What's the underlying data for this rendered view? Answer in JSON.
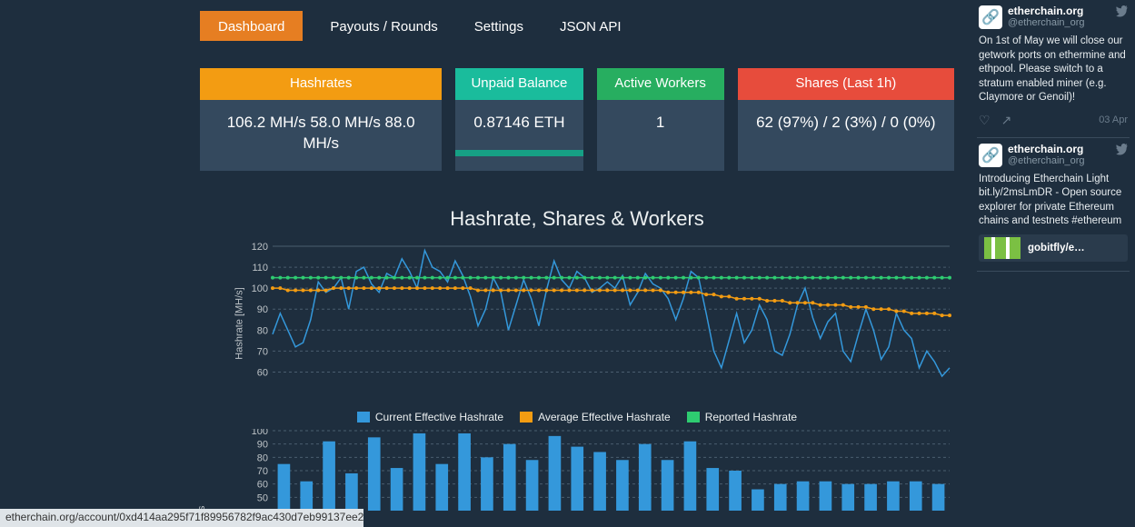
{
  "nav": {
    "tabs": [
      "Dashboard",
      "Payouts / Rounds",
      "Settings",
      "JSON API"
    ],
    "active_index": 0,
    "active_bg": "#e67e22"
  },
  "stats": {
    "hashrates": {
      "title": "Hashrates",
      "value": "106.2 MH/s   58.0 MH/s   88.0 MH/s",
      "header_color": "#f39c12"
    },
    "unpaid": {
      "title": "Unpaid Balance",
      "value": "0.87146 ETH",
      "header_color": "#1abc9c",
      "bottom_bar_color": "#16a085"
    },
    "workers": {
      "title": "Active Workers",
      "value": "1",
      "header_color": "#27ae60"
    },
    "shares": {
      "title": "Shares (Last 1h)",
      "value": "62 (97%) / 2 (3%) / 0 (0%)",
      "header_color": "#e74c3c"
    },
    "body_bg": "#34495e"
  },
  "line_chart": {
    "title": "Hashrate, Shares & Workers",
    "ylabel": "Hashrate [MH/s]",
    "ylim": [
      55,
      120
    ],
    "yticks": [
      60,
      70,
      80,
      90,
      100,
      110,
      120
    ],
    "series": {
      "current": {
        "label": "Current Effective Hashrate",
        "color": "#3498db"
      },
      "average": {
        "label": "Average Effective Hashrate",
        "color": "#f39c12"
      },
      "reported": {
        "label": "Reported Hashrate",
        "color": "#2ecc71"
      }
    },
    "current_values": [
      78,
      88,
      80,
      72,
      74,
      85,
      103,
      98,
      100,
      105,
      90,
      108,
      110,
      102,
      98,
      107,
      105,
      114,
      108,
      100,
      118,
      110,
      108,
      103,
      113,
      106,
      96,
      82,
      90,
      105,
      98,
      80,
      92,
      104,
      95,
      82,
      99,
      113,
      104,
      100,
      108,
      105,
      98,
      100,
      103,
      100,
      106,
      92,
      98,
      107,
      102,
      100,
      95,
      85,
      95,
      108,
      105,
      88,
      70,
      62,
      75,
      88,
      74,
      80,
      92,
      85,
      70,
      68,
      78,
      92,
      100,
      86,
      76,
      84,
      88,
      70,
      65,
      78,
      90,
      80,
      66,
      72,
      88,
      80,
      76,
      62,
      70,
      65,
      58,
      62
    ],
    "average_values": [
      100,
      100,
      99,
      99,
      99,
      99,
      99,
      99,
      100,
      100,
      100,
      100,
      100,
      100,
      100,
      100,
      100,
      100,
      100,
      100,
      100,
      100,
      100,
      100,
      100,
      100,
      100,
      99,
      99,
      99,
      99,
      99,
      99,
      99,
      99,
      99,
      99,
      99,
      99,
      99,
      99,
      99,
      99,
      99,
      99,
      99,
      99,
      99,
      99,
      99,
      99,
      99,
      98,
      98,
      98,
      98,
      98,
      97,
      97,
      96,
      96,
      95,
      95,
      95,
      95,
      94,
      94,
      94,
      93,
      93,
      93,
      93,
      92,
      92,
      92,
      92,
      91,
      91,
      91,
      90,
      90,
      90,
      89,
      89,
      88,
      88,
      88,
      88,
      87,
      87
    ],
    "reported_values": [
      105,
      105,
      105,
      105,
      105,
      105,
      105,
      105,
      105,
      105,
      105,
      105,
      105,
      105,
      105,
      105,
      105,
      105,
      105,
      105,
      105,
      105,
      105,
      105,
      105,
      105,
      105,
      105,
      105,
      105,
      105,
      105,
      105,
      105,
      105,
      105,
      105,
      105,
      105,
      105,
      105,
      105,
      105,
      105,
      105,
      105,
      105,
      105,
      105,
      105,
      105,
      105,
      105,
      105,
      105,
      105,
      105,
      105,
      105,
      105,
      105,
      105,
      105,
      105,
      105,
      105,
      105,
      105,
      105,
      105,
      105,
      105,
      105,
      105,
      105,
      105,
      105,
      105,
      105,
      105,
      105,
      105,
      105,
      105,
      105,
      105,
      105,
      105,
      105,
      105
    ],
    "grid_color": "#4a5d6f"
  },
  "bar_chart": {
    "ylabel": "ares",
    "ylim": [
      40,
      100
    ],
    "yticks": [
      50,
      60,
      70,
      80,
      90,
      100
    ],
    "values": [
      75,
      62,
      92,
      68,
      95,
      72,
      98,
      75,
      98,
      80,
      90,
      78,
      96,
      88,
      84,
      78,
      90,
      78,
      92,
      72,
      70,
      56,
      60,
      62,
      62,
      60,
      60,
      62,
      62,
      60
    ],
    "bar_color": "#3498db",
    "grid_color": "#4a5d6f"
  },
  "twitter": {
    "tweets": [
      {
        "avatar_text": "🔗",
        "user": "etherchain.org",
        "handle": "@etherchain_org",
        "body": "On 1st of May we will close our getwork ports on ethermine and ethpool. Please switch to a stratum enabled miner (e.g. Claymore or Genoil)!",
        "date": "03 Apr"
      },
      {
        "avatar_text": "🔗",
        "user": "etherchain.org",
        "handle": "@etherchain_org",
        "body": "Introducing Etherchain Light bit.ly/2msLmDR - Open source explorer for private Ethereum chains and testnets #ethereum",
        "embed": "gobitfly/e…"
      }
    ]
  },
  "status_bar": "etherchain.org/account/0xd414aa295f71f89956782f9ac430d7eb99137ee2",
  "colors": {
    "page_bg": "#1e2e3e",
    "text": "#ecf0f1"
  }
}
